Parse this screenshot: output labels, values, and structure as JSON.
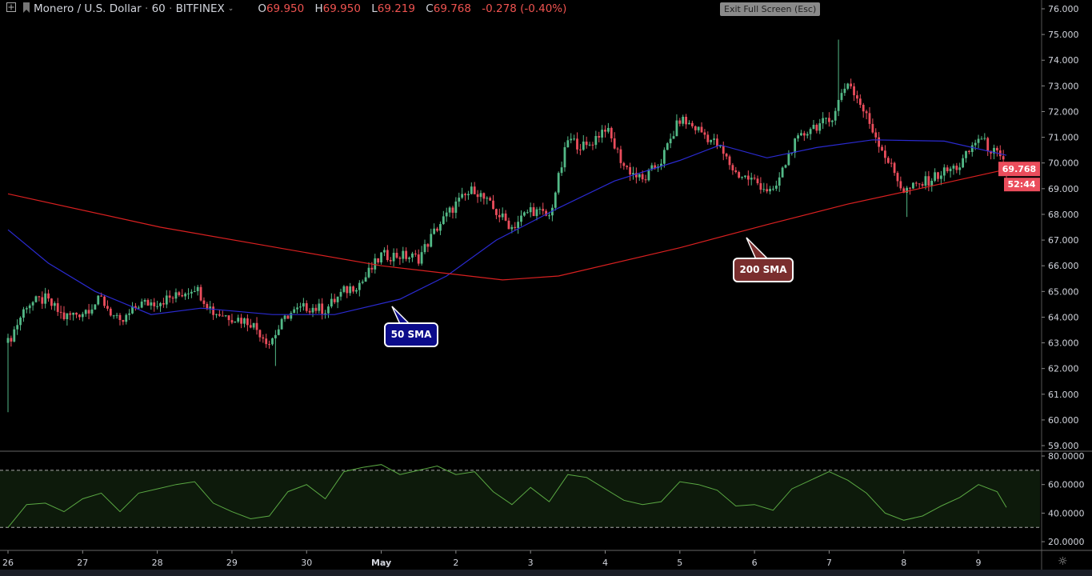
{
  "header": {
    "symbol": "Monero / U.S. Dollar",
    "interval": "60",
    "exchange": "BITFINEX",
    "open_label": "O",
    "open": "69.950",
    "high_label": "H",
    "high": "69.950",
    "low_label": "L",
    "low": "69.219",
    "close_label": "C",
    "close": "69.768",
    "change": "-0.278 (-0.40%)",
    "tooltip": "Exit Full Screen (Esc)",
    "icons": [
      "expand-plus-icon",
      "symbol-flag-icon",
      "chevron-down-icon"
    ]
  },
  "colors": {
    "up": "#53b987",
    "down": "#eb4d5c",
    "sma50": "#2a2ad0",
    "sma200": "#d92020",
    "rsi": "#5aa843",
    "rsi_band": "#0d1a0b",
    "background": "#000000",
    "sma50_callout": "#0b0b8a",
    "sma200_callout": "#7a2e2e",
    "price_label": "#eb4d5c"
  },
  "callouts": {
    "sma50": "50 SMA",
    "sma200": "200 SMA"
  },
  "current_price_label": "69.768",
  "countdown": "52:44",
  "chart_data": [
    {
      "type": "candlestick",
      "title": "",
      "interval_minutes": 60,
      "y_ticks": [
        "76.000",
        "75.000",
        "74.000",
        "73.000",
        "72.000",
        "71.000",
        "70.000",
        "69.000",
        "68.000",
        "67.000",
        "66.000",
        "65.000",
        "64.000",
        "63.000",
        "62.000",
        "61.000",
        "60.000",
        "59.000"
      ],
      "ylim": [
        59,
        76
      ],
      "x_ticks": [
        "26",
        "27",
        "28",
        "29",
        "30",
        "May",
        "2",
        "3",
        "4",
        "5",
        "6",
        "7",
        "8",
        "9"
      ],
      "grid": false,
      "close_approx_6h": [
        [
          "04-26 00:00",
          63.0
        ],
        [
          "04-26 06:00",
          64.5
        ],
        [
          "04-26 12:00",
          64.7
        ],
        [
          "04-26 18:00",
          64.0
        ],
        [
          "04-27 00:00",
          64.2
        ],
        [
          "04-27 06:00",
          64.7
        ],
        [
          "04-27 12:00",
          63.7
        ],
        [
          "04-27 18:00",
          64.5
        ],
        [
          "04-28 00:00",
          64.6
        ],
        [
          "04-28 06:00",
          64.8
        ],
        [
          "04-28 12:00",
          65.2
        ],
        [
          "04-28 18:00",
          64.2
        ],
        [
          "04-29 00:00",
          64.0
        ],
        [
          "04-29 06:00",
          63.8
        ],
        [
          "04-29 12:00",
          63.0
        ],
        [
          "04-29 18:00",
          64.1
        ],
        [
          "04-30 00:00",
          64.4
        ],
        [
          "04-30 06:00",
          64.3
        ],
        [
          "04-30 12:00",
          65.0
        ],
        [
          "04-30 18:00",
          65.4
        ],
        [
          "05-01 00:00",
          66.4
        ],
        [
          "05-01 06:00",
          66.4
        ],
        [
          "05-01 12:00",
          66.3
        ],
        [
          "05-01 18:00",
          67.5
        ],
        [
          "05-02 00:00",
          68.4
        ],
        [
          "05-02 06:00",
          69.0
        ],
        [
          "05-02 12:00",
          68.2
        ],
        [
          "05-02 18:00",
          67.5
        ],
        [
          "05-03 00:00",
          68.2
        ],
        [
          "05-03 06:00",
          67.9
        ],
        [
          "05-03 12:00",
          70.9
        ],
        [
          "05-03 18:00",
          70.6
        ],
        [
          "05-04 00:00",
          71.4
        ],
        [
          "05-04 06:00",
          69.9
        ],
        [
          "05-04 12:00",
          69.3
        ],
        [
          "05-04 18:00",
          70.1
        ],
        [
          "05-05 00:00",
          71.7
        ],
        [
          "05-05 06:00",
          71.3
        ],
        [
          "05-05 12:00",
          70.7
        ],
        [
          "05-05 18:00",
          69.6
        ],
        [
          "05-06 00:00",
          69.3
        ],
        [
          "05-06 06:00",
          68.8
        ],
        [
          "05-06 12:00",
          70.6
        ],
        [
          "05-06 18:00",
          71.4
        ],
        [
          "05-07 00:00",
          71.6
        ],
        [
          "05-07 06:00",
          73.2
        ],
        [
          "05-07 12:00",
          71.8
        ],
        [
          "05-07 18:00",
          70.3
        ],
        [
          "05-08 00:00",
          68.9
        ],
        [
          "05-08 06:00",
          69.2
        ],
        [
          "05-08 12:00",
          69.6
        ],
        [
          "05-08 18:00",
          69.9
        ],
        [
          "05-09 00:00",
          71.0
        ],
        [
          "05-09 06:00",
          70.3
        ],
        [
          "05-09 09:00",
          69.768
        ]
      ],
      "notable_wicks": [
        {
          "time": "04-26 00:00",
          "low": 60.3
        },
        {
          "time": "04-29 14:00",
          "low": 62.1
        },
        {
          "time": "05-07 03:00",
          "high": 74.8
        },
        {
          "time": "05-08 01:00",
          "low": 67.9
        }
      ],
      "last_candle": {
        "time": "05-09 09:00",
        "open": 69.95,
        "high": 69.95,
        "low": 69.219,
        "close": 69.768
      },
      "series": [
        {
          "name": "50 SMA",
          "points": [
            [
              "04-26 00:00",
              67.4
            ],
            [
              "04-26 13:00",
              66.1
            ],
            [
              "04-27 04:00",
              65.0
            ],
            [
              "04-27 22:00",
              64.1
            ],
            [
              "04-28 14:00",
              64.35
            ],
            [
              "04-29 13:00",
              64.1
            ],
            [
              "04-30 09:00",
              64.1
            ],
            [
              "05-01 06:00",
              64.7
            ],
            [
              "05-01 21:00",
              65.6
            ],
            [
              "05-02 13:00",
              67.0
            ],
            [
              "05-03 09:00",
              68.25
            ],
            [
              "05-04 03:00",
              69.3
            ],
            [
              "05-05 00:00",
              70.1
            ],
            [
              "05-05 13:00",
              70.7
            ],
            [
              "05-06 04:00",
              70.2
            ],
            [
              "05-06 20:00",
              70.6
            ],
            [
              "05-07 14:00",
              70.9
            ],
            [
              "05-08 13:00",
              70.85
            ],
            [
              "05-09 09:00",
              70.3
            ]
          ]
        },
        {
          "name": "200 SMA",
          "points": [
            [
              "04-26 00:00",
              68.8
            ],
            [
              "04-28 01:00",
              67.5
            ],
            [
              "05-01 00:00",
              66.0
            ],
            [
              "05-02 15:00",
              65.45
            ],
            [
              "05-03 09:00",
              65.6
            ],
            [
              "05-05 00:00",
              66.7
            ],
            [
              "05-06 04:00",
              67.6
            ],
            [
              "05-07 06:00",
              68.4
            ],
            [
              "05-08 05:00",
              69.0
            ],
            [
              "05-09 09:00",
              69.75
            ]
          ]
        }
      ]
    },
    {
      "type": "line",
      "title": "",
      "y_ticks": [
        "80.0000",
        "60.0000",
        "40.0000",
        "20.0000"
      ],
      "ylim": [
        15,
        82
      ],
      "bands": [
        70,
        30
      ],
      "values_6h": [
        30,
        46,
        47,
        41,
        50,
        54,
        41,
        54,
        57,
        60,
        62,
        47,
        41,
        36,
        38,
        55,
        60,
        50,
        69,
        72,
        74,
        67,
        70,
        73,
        67,
        69,
        55,
        46,
        58,
        48,
        67,
        65,
        57,
        49,
        46,
        48,
        62,
        60,
        56,
        45,
        46,
        42,
        57,
        63,
        69,
        63,
        54,
        40,
        35,
        38,
        45,
        51,
        60,
        55,
        44
      ]
    }
  ]
}
